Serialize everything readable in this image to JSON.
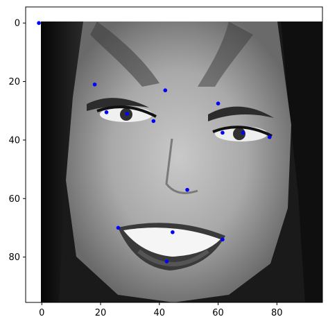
{
  "chart_data": {
    "type": "scatter",
    "title": "",
    "xlabel": "",
    "ylabel": "",
    "xlim": [
      -5.5,
      95.5
    ],
    "ylim": [
      95.5,
      -5.5
    ],
    "y_inverted": true,
    "grid": false,
    "background_image": "grayscale-face-photo",
    "image_extent": [
      -0.5,
      95.5,
      95.5,
      -0.5
    ],
    "x_ticks": [
      0,
      20,
      40,
      60,
      80
    ],
    "y_ticks": [
      0,
      20,
      40,
      60,
      80
    ],
    "x_tick_labels": [
      "0",
      "20",
      "40",
      "60",
      "80"
    ],
    "y_tick_labels": [
      "0",
      "20",
      "40",
      "60",
      "80"
    ],
    "marker_color": "#0000ff",
    "points": [
      {
        "x": -1,
        "y": 0
      },
      {
        "x": 18,
        "y": 21
      },
      {
        "x": 22,
        "y": 30.5
      },
      {
        "x": 29,
        "y": 31
      },
      {
        "x": 38,
        "y": 33.5
      },
      {
        "x": 42,
        "y": 23
      },
      {
        "x": 60,
        "y": 27.5
      },
      {
        "x": 61.5,
        "y": 37.5
      },
      {
        "x": 68.5,
        "y": 37.5
      },
      {
        "x": 77.5,
        "y": 39
      },
      {
        "x": 49.5,
        "y": 57
      },
      {
        "x": 26,
        "y": 70
      },
      {
        "x": 44.5,
        "y": 71.5
      },
      {
        "x": 61.5,
        "y": 74
      },
      {
        "x": 42.5,
        "y": 81.5
      }
    ]
  }
}
